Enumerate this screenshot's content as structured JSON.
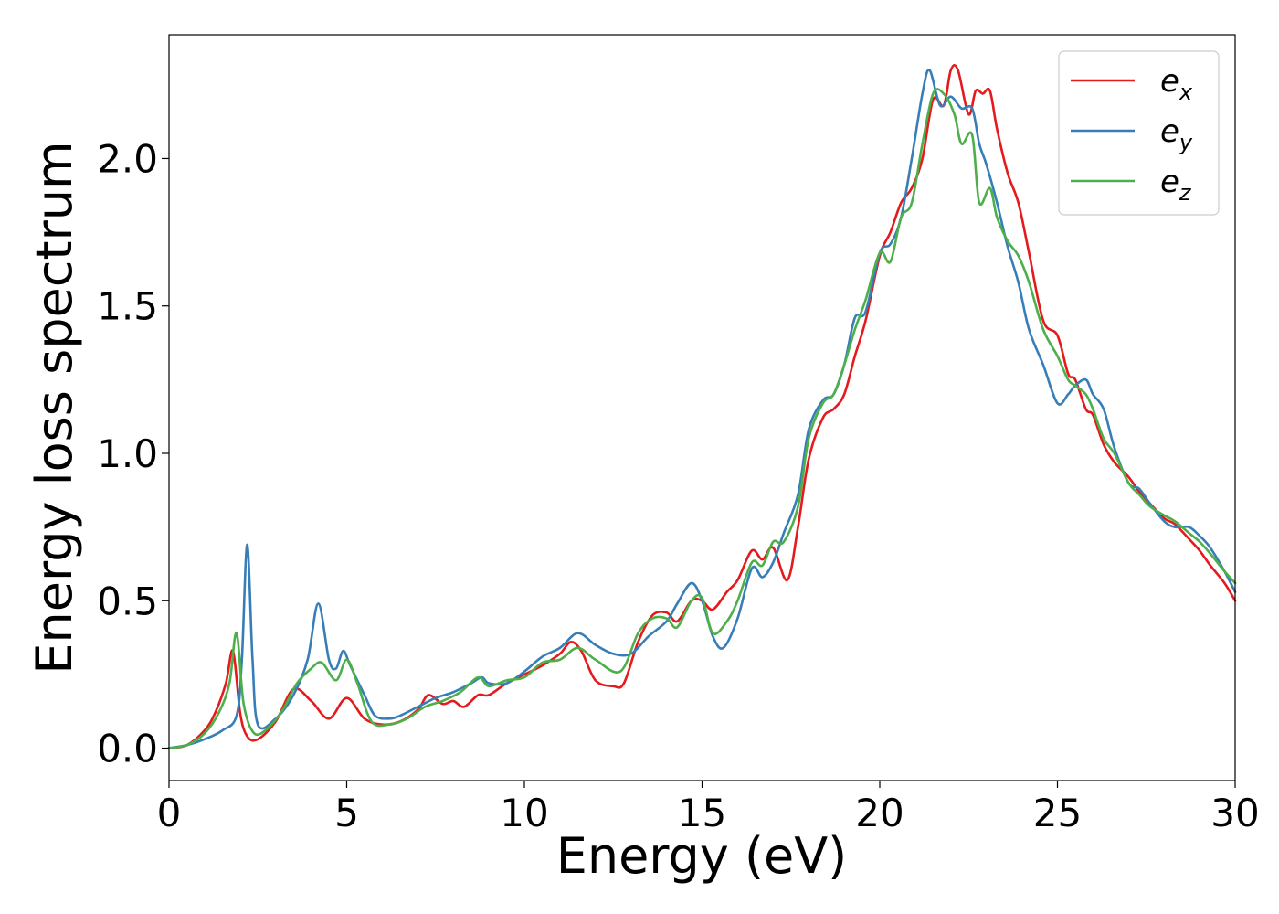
{
  "chart_data": {
    "type": "line",
    "title": "",
    "xlabel": "Energy (eV)",
    "ylabel": "Energy loss spectrum",
    "xlim": [
      0,
      30
    ],
    "ylim": [
      -0.11,
      2.42
    ],
    "xticks": [
      0,
      5,
      10,
      15,
      20,
      25,
      30
    ],
    "xtick_labels": [
      "0",
      "5",
      "10",
      "15",
      "20",
      "25",
      "30"
    ],
    "yticks": [
      0.0,
      0.5,
      1.0,
      1.5,
      2.0
    ],
    "ytick_labels": [
      "0.0",
      "0.5",
      "1.0",
      "1.5",
      "2.0"
    ],
    "grid": false,
    "legend_position": "top-right",
    "series": [
      {
        "name": "e_x",
        "legend_base": "e",
        "legend_sub": "x",
        "color": "#e41a1c",
        "points": [
          [
            0,
            0.0
          ],
          [
            0.5,
            0.01
          ],
          [
            1.0,
            0.06
          ],
          [
            1.3,
            0.12
          ],
          [
            1.6,
            0.22
          ],
          [
            1.8,
            0.33
          ],
          [
            2.0,
            0.12
          ],
          [
            2.2,
            0.04
          ],
          [
            2.5,
            0.03
          ],
          [
            3.0,
            0.09
          ],
          [
            3.5,
            0.2
          ],
          [
            4.0,
            0.16
          ],
          [
            4.5,
            0.1
          ],
          [
            5.0,
            0.17
          ],
          [
            5.5,
            0.1
          ],
          [
            6.0,
            0.08
          ],
          [
            6.5,
            0.09
          ],
          [
            7.0,
            0.13
          ],
          [
            7.3,
            0.18
          ],
          [
            7.7,
            0.15
          ],
          [
            8.0,
            0.16
          ],
          [
            8.3,
            0.14
          ],
          [
            8.7,
            0.18
          ],
          [
            9.0,
            0.18
          ],
          [
            9.5,
            0.22
          ],
          [
            10.0,
            0.25
          ],
          [
            10.5,
            0.28
          ],
          [
            11.0,
            0.32
          ],
          [
            11.3,
            0.36
          ],
          [
            11.6,
            0.33
          ],
          [
            12.0,
            0.23
          ],
          [
            12.5,
            0.21
          ],
          [
            12.8,
            0.22
          ],
          [
            13.2,
            0.36
          ],
          [
            13.6,
            0.45
          ],
          [
            14.0,
            0.46
          ],
          [
            14.3,
            0.43
          ],
          [
            14.7,
            0.5
          ],
          [
            15.0,
            0.5
          ],
          [
            15.3,
            0.47
          ],
          [
            15.7,
            0.53
          ],
          [
            16.0,
            0.57
          ],
          [
            16.4,
            0.67
          ],
          [
            16.7,
            0.64
          ],
          [
            17.0,
            0.68
          ],
          [
            17.4,
            0.57
          ],
          [
            17.7,
            0.75
          ],
          [
            18.0,
            0.98
          ],
          [
            18.4,
            1.12
          ],
          [
            18.7,
            1.15
          ],
          [
            19.0,
            1.2
          ],
          [
            19.3,
            1.33
          ],
          [
            19.6,
            1.45
          ],
          [
            20.0,
            1.67
          ],
          [
            20.3,
            1.75
          ],
          [
            20.6,
            1.85
          ],
          [
            20.9,
            1.9
          ],
          [
            21.2,
            2.0
          ],
          [
            21.5,
            2.2
          ],
          [
            21.8,
            2.18
          ],
          [
            22.0,
            2.3
          ],
          [
            22.2,
            2.3
          ],
          [
            22.5,
            2.15
          ],
          [
            22.7,
            2.23
          ],
          [
            22.9,
            2.22
          ],
          [
            23.1,
            2.23
          ],
          [
            23.3,
            2.1
          ],
          [
            23.6,
            1.95
          ],
          [
            23.9,
            1.85
          ],
          [
            24.2,
            1.68
          ],
          [
            24.6,
            1.45
          ],
          [
            25.0,
            1.4
          ],
          [
            25.3,
            1.27
          ],
          [
            25.5,
            1.25
          ],
          [
            25.8,
            1.15
          ],
          [
            26.0,
            1.13
          ],
          [
            26.3,
            1.03
          ],
          [
            26.6,
            0.97
          ],
          [
            27.0,
            0.92
          ],
          [
            27.3,
            0.87
          ],
          [
            27.6,
            0.83
          ],
          [
            28.0,
            0.78
          ],
          [
            28.3,
            0.76
          ],
          [
            28.7,
            0.71
          ],
          [
            29.0,
            0.67
          ],
          [
            29.3,
            0.62
          ],
          [
            29.7,
            0.56
          ],
          [
            30.0,
            0.5
          ]
        ]
      },
      {
        "name": "e_y",
        "legend_base": "e",
        "legend_sub": "y",
        "color": "#377eb8",
        "points": [
          [
            0,
            0.0
          ],
          [
            0.5,
            0.01
          ],
          [
            1.0,
            0.03
          ],
          [
            1.5,
            0.06
          ],
          [
            1.9,
            0.11
          ],
          [
            2.05,
            0.3
          ],
          [
            2.2,
            0.69
          ],
          [
            2.35,
            0.3
          ],
          [
            2.5,
            0.08
          ],
          [
            3.0,
            0.1
          ],
          [
            3.5,
            0.18
          ],
          [
            3.9,
            0.3
          ],
          [
            4.2,
            0.49
          ],
          [
            4.5,
            0.3
          ],
          [
            4.7,
            0.27
          ],
          [
            4.9,
            0.33
          ],
          [
            5.1,
            0.28
          ],
          [
            5.5,
            0.18
          ],
          [
            5.8,
            0.11
          ],
          [
            6.2,
            0.1
          ],
          [
            6.5,
            0.11
          ],
          [
            7.0,
            0.14
          ],
          [
            7.5,
            0.17
          ],
          [
            8.0,
            0.19
          ],
          [
            8.5,
            0.22
          ],
          [
            8.8,
            0.24
          ],
          [
            9.0,
            0.22
          ],
          [
            9.5,
            0.22
          ],
          [
            10.0,
            0.26
          ],
          [
            10.5,
            0.31
          ],
          [
            11.0,
            0.34
          ],
          [
            11.5,
            0.39
          ],
          [
            12.0,
            0.35
          ],
          [
            12.5,
            0.32
          ],
          [
            13.0,
            0.32
          ],
          [
            13.5,
            0.38
          ],
          [
            14.0,
            0.43
          ],
          [
            14.3,
            0.49
          ],
          [
            14.7,
            0.56
          ],
          [
            15.0,
            0.5
          ],
          [
            15.3,
            0.38
          ],
          [
            15.6,
            0.34
          ],
          [
            16.0,
            0.44
          ],
          [
            16.4,
            0.61
          ],
          [
            16.7,
            0.58
          ],
          [
            17.0,
            0.63
          ],
          [
            17.3,
            0.73
          ],
          [
            17.7,
            0.86
          ],
          [
            18.0,
            1.08
          ],
          [
            18.4,
            1.18
          ],
          [
            18.7,
            1.2
          ],
          [
            19.0,
            1.3
          ],
          [
            19.3,
            1.46
          ],
          [
            19.6,
            1.48
          ],
          [
            20.0,
            1.68
          ],
          [
            20.3,
            1.71
          ],
          [
            20.6,
            1.8
          ],
          [
            20.9,
            2.0
          ],
          [
            21.2,
            2.22
          ],
          [
            21.4,
            2.3
          ],
          [
            21.7,
            2.18
          ],
          [
            22.0,
            2.21
          ],
          [
            22.3,
            2.17
          ],
          [
            22.6,
            2.17
          ],
          [
            22.8,
            2.05
          ],
          [
            23.0,
            1.98
          ],
          [
            23.3,
            1.85
          ],
          [
            23.6,
            1.7
          ],
          [
            23.9,
            1.58
          ],
          [
            24.2,
            1.42
          ],
          [
            24.6,
            1.3
          ],
          [
            25.0,
            1.17
          ],
          [
            25.3,
            1.2
          ],
          [
            25.5,
            1.23
          ],
          [
            25.8,
            1.25
          ],
          [
            26.0,
            1.2
          ],
          [
            26.3,
            1.15
          ],
          [
            26.6,
            1.02
          ],
          [
            27.0,
            0.9
          ],
          [
            27.3,
            0.88
          ],
          [
            27.6,
            0.83
          ],
          [
            28.0,
            0.77
          ],
          [
            28.3,
            0.75
          ],
          [
            28.7,
            0.75
          ],
          [
            29.0,
            0.72
          ],
          [
            29.3,
            0.68
          ],
          [
            29.7,
            0.6
          ],
          [
            30.0,
            0.53
          ]
        ]
      },
      {
        "name": "e_z",
        "legend_base": "e",
        "legend_sub": "z",
        "color": "#4daf4a",
        "points": [
          [
            0,
            0.0
          ],
          [
            0.5,
            0.01
          ],
          [
            1.0,
            0.05
          ],
          [
            1.4,
            0.12
          ],
          [
            1.7,
            0.22
          ],
          [
            1.9,
            0.39
          ],
          [
            2.1,
            0.15
          ],
          [
            2.4,
            0.05
          ],
          [
            2.8,
            0.07
          ],
          [
            3.2,
            0.13
          ],
          [
            3.6,
            0.22
          ],
          [
            4.0,
            0.27
          ],
          [
            4.3,
            0.29
          ],
          [
            4.7,
            0.23
          ],
          [
            5.0,
            0.3
          ],
          [
            5.3,
            0.22
          ],
          [
            5.7,
            0.09
          ],
          [
            6.2,
            0.08
          ],
          [
            6.7,
            0.1
          ],
          [
            7.2,
            0.14
          ],
          [
            7.7,
            0.16
          ],
          [
            8.2,
            0.19
          ],
          [
            8.7,
            0.24
          ],
          [
            9.0,
            0.21
          ],
          [
            9.5,
            0.23
          ],
          [
            10.0,
            0.24
          ],
          [
            10.5,
            0.29
          ],
          [
            11.0,
            0.3
          ],
          [
            11.5,
            0.34
          ],
          [
            12.0,
            0.3
          ],
          [
            12.7,
            0.26
          ],
          [
            13.2,
            0.39
          ],
          [
            13.6,
            0.44
          ],
          [
            14.0,
            0.44
          ],
          [
            14.3,
            0.41
          ],
          [
            14.7,
            0.5
          ],
          [
            15.0,
            0.51
          ],
          [
            15.3,
            0.39
          ],
          [
            15.7,
            0.43
          ],
          [
            16.0,
            0.5
          ],
          [
            16.4,
            0.63
          ],
          [
            16.7,
            0.62
          ],
          [
            17.0,
            0.7
          ],
          [
            17.3,
            0.7
          ],
          [
            17.7,
            0.82
          ],
          [
            18.0,
            1.05
          ],
          [
            18.4,
            1.17
          ],
          [
            18.7,
            1.2
          ],
          [
            19.0,
            1.3
          ],
          [
            19.3,
            1.42
          ],
          [
            19.6,
            1.52
          ],
          [
            20.0,
            1.68
          ],
          [
            20.3,
            1.65
          ],
          [
            20.6,
            1.8
          ],
          [
            20.9,
            1.85
          ],
          [
            21.2,
            2.05
          ],
          [
            21.5,
            2.22
          ],
          [
            21.8,
            2.22
          ],
          [
            22.1,
            2.15
          ],
          [
            22.3,
            2.05
          ],
          [
            22.6,
            2.08
          ],
          [
            22.8,
            1.85
          ],
          [
            23.1,
            1.9
          ],
          [
            23.3,
            1.8
          ],
          [
            23.6,
            1.72
          ],
          [
            23.9,
            1.67
          ],
          [
            24.2,
            1.58
          ],
          [
            24.6,
            1.42
          ],
          [
            25.0,
            1.33
          ],
          [
            25.3,
            1.25
          ],
          [
            25.5,
            1.23
          ],
          [
            25.8,
            1.2
          ],
          [
            26.0,
            1.15
          ],
          [
            26.3,
            1.05
          ],
          [
            26.6,
            1.0
          ],
          [
            27.0,
            0.9
          ],
          [
            27.3,
            0.86
          ],
          [
            27.6,
            0.82
          ],
          [
            28.0,
            0.79
          ],
          [
            28.3,
            0.77
          ],
          [
            28.7,
            0.73
          ],
          [
            29.0,
            0.7
          ],
          [
            29.3,
            0.66
          ],
          [
            29.7,
            0.6
          ],
          [
            30.0,
            0.56
          ]
        ]
      }
    ]
  }
}
